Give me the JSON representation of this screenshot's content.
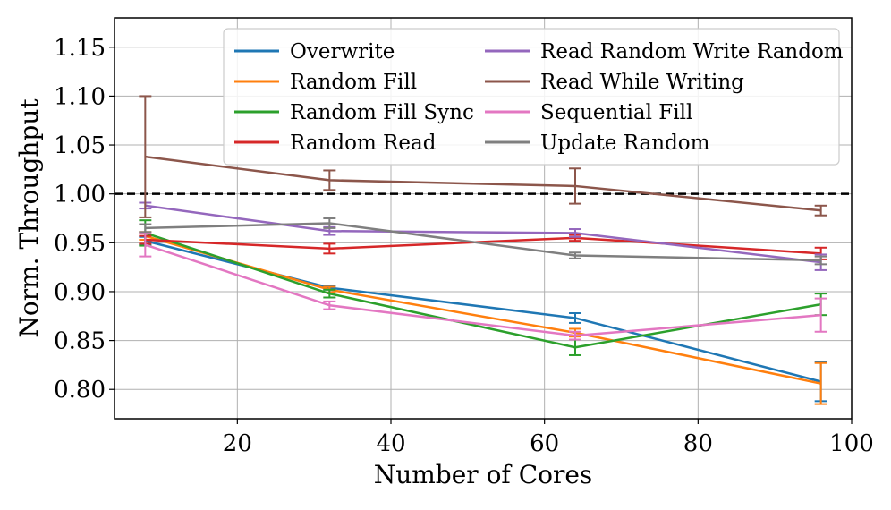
{
  "chart_data": {
    "type": "line",
    "title": "",
    "xlabel": "Number of Cores",
    "ylabel": "Norm. Throughput",
    "xlim": [
      4,
      100
    ],
    "ylim": [
      0.77,
      1.18
    ],
    "x": [
      8,
      32,
      64,
      96
    ],
    "xticks": [
      20,
      40,
      60,
      80,
      100
    ],
    "xtick_labels": [
      "20",
      "40",
      "60",
      "80",
      "100"
    ],
    "yticks": [
      0.8,
      0.85,
      0.9,
      0.95,
      1.0,
      1.05,
      1.1,
      1.15
    ],
    "ytick_labels": [
      "0.80",
      "0.85",
      "0.90",
      "0.95",
      "1.00",
      "1.05",
      "1.10",
      "1.15"
    ],
    "grid": true,
    "reference_line": {
      "y": 1.0,
      "style": "dashed",
      "color": "#000000"
    },
    "legend_position": "top-right",
    "series": [
      {
        "name": "Overwrite",
        "color": "#1f77b4",
        "values": [
          0.952,
          0.904,
          0.873,
          0.808
        ],
        "err": [
          0.004,
          0.002,
          0.005,
          0.02
        ]
      },
      {
        "name": "Random Fill",
        "color": "#ff7f0e",
        "values": [
          0.957,
          0.902,
          0.858,
          0.806
        ],
        "err": [
          0.004,
          0.003,
          0.004,
          0.021
        ]
      },
      {
        "name": "Random Fill Sync",
        "color": "#2ca02c",
        "values": [
          0.96,
          0.898,
          0.843,
          0.887
        ],
        "err": [
          0.013,
          0.004,
          0.008,
          0.011
        ]
      },
      {
        "name": "Random Read",
        "color": "#d62728",
        "values": [
          0.953,
          0.944,
          0.955,
          0.939
        ],
        "err": [
          0.004,
          0.005,
          0.003,
          0.006
        ]
      },
      {
        "name": "Read Random Write Random",
        "color": "#9467bd",
        "values": [
          0.988,
          0.962,
          0.96,
          0.93
        ],
        "err": [
          0.003,
          0.004,
          0.004,
          0.008
        ]
      },
      {
        "name": "Read While Writing",
        "color": "#8c564b",
        "values": [
          1.038,
          1.014,
          1.008,
          0.983
        ],
        "err": [
          0.062,
          0.01,
          0.018,
          0.005
        ]
      },
      {
        "name": "Sequential Fill",
        "color": "#e377c2",
        "values": [
          0.948,
          0.886,
          0.855,
          0.876
        ],
        "err": [
          0.012,
          0.004,
          0.004,
          0.017
        ]
      },
      {
        "name": "Update Random",
        "color": "#7f7f7f",
        "values": [
          0.965,
          0.97,
          0.937,
          0.932
        ],
        "err": [
          0.004,
          0.005,
          0.003,
          0.004
        ]
      }
    ]
  }
}
